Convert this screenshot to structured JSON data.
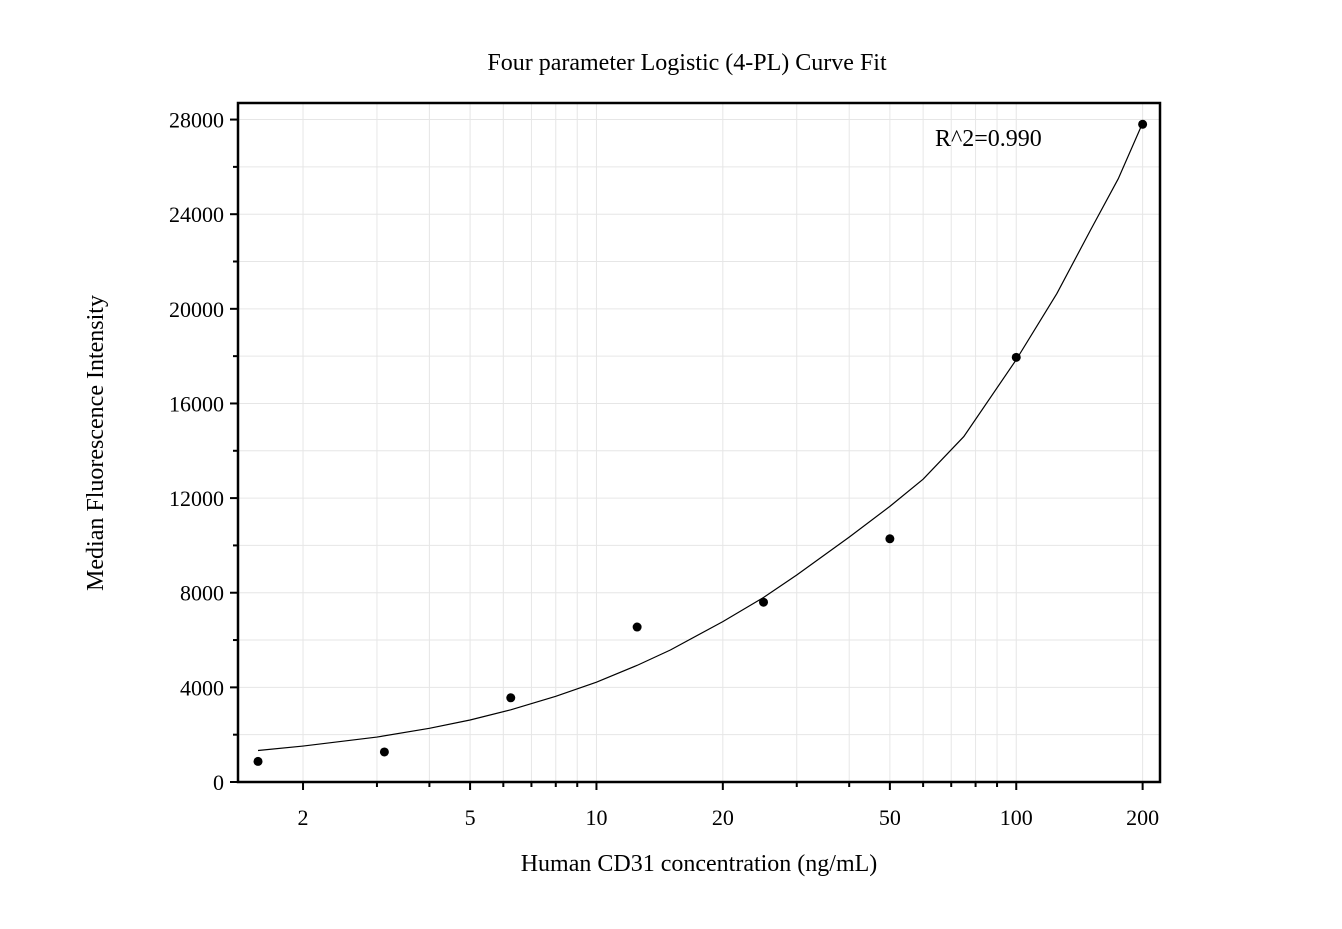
{
  "chart_data": {
    "type": "scatter",
    "title": "Four parameter Logistic (4-PL) Curve Fit",
    "xlabel": "Human CD31 concentration (ng/mL)",
    "ylabel": "Median Fluorescence Intensity",
    "xscale": "log",
    "xlim": [
      1.4,
      220
    ],
    "ylim": [
      0,
      28700
    ],
    "grid": true,
    "x_ticks": [
      2,
      5,
      10,
      20,
      50,
      100,
      200
    ],
    "x_tick_labels": [
      "2",
      "5",
      "10",
      "20",
      "50",
      "100",
      "200"
    ],
    "y_ticks": [
      0,
      4000,
      8000,
      12000,
      16000,
      20000,
      24000,
      28000
    ],
    "y_tick_labels": [
      "0",
      "4000",
      "8000",
      "12000",
      "16000",
      "20000",
      "24000",
      "28000"
    ],
    "y_minor_step": 2000,
    "points": [
      {
        "x": 1.5625,
        "y": 870
      },
      {
        "x": 3.125,
        "y": 1270
      },
      {
        "x": 6.25,
        "y": 3560
      },
      {
        "x": 12.5,
        "y": 6550
      },
      {
        "x": 25,
        "y": 7600
      },
      {
        "x": 50,
        "y": 10280
      },
      {
        "x": 100,
        "y": 17950
      },
      {
        "x": 200,
        "y": 27800
      }
    ],
    "fit_curve": {
      "x": [
        1.5625,
        2,
        3,
        4,
        5,
        6.25,
        8,
        10,
        12.5,
        15,
        20,
        25,
        30,
        40,
        50,
        60,
        75,
        100,
        125,
        150,
        175,
        200
      ],
      "y": [
        1330,
        1520,
        1900,
        2270,
        2620,
        3050,
        3620,
        4220,
        4930,
        5580,
        6780,
        7800,
        8750,
        10350,
        11650,
        12800,
        14600,
        17850,
        20650,
        23300,
        25500,
        27850
      ]
    },
    "annotations": [
      {
        "text": "R^2=0.990"
      }
    ]
  }
}
